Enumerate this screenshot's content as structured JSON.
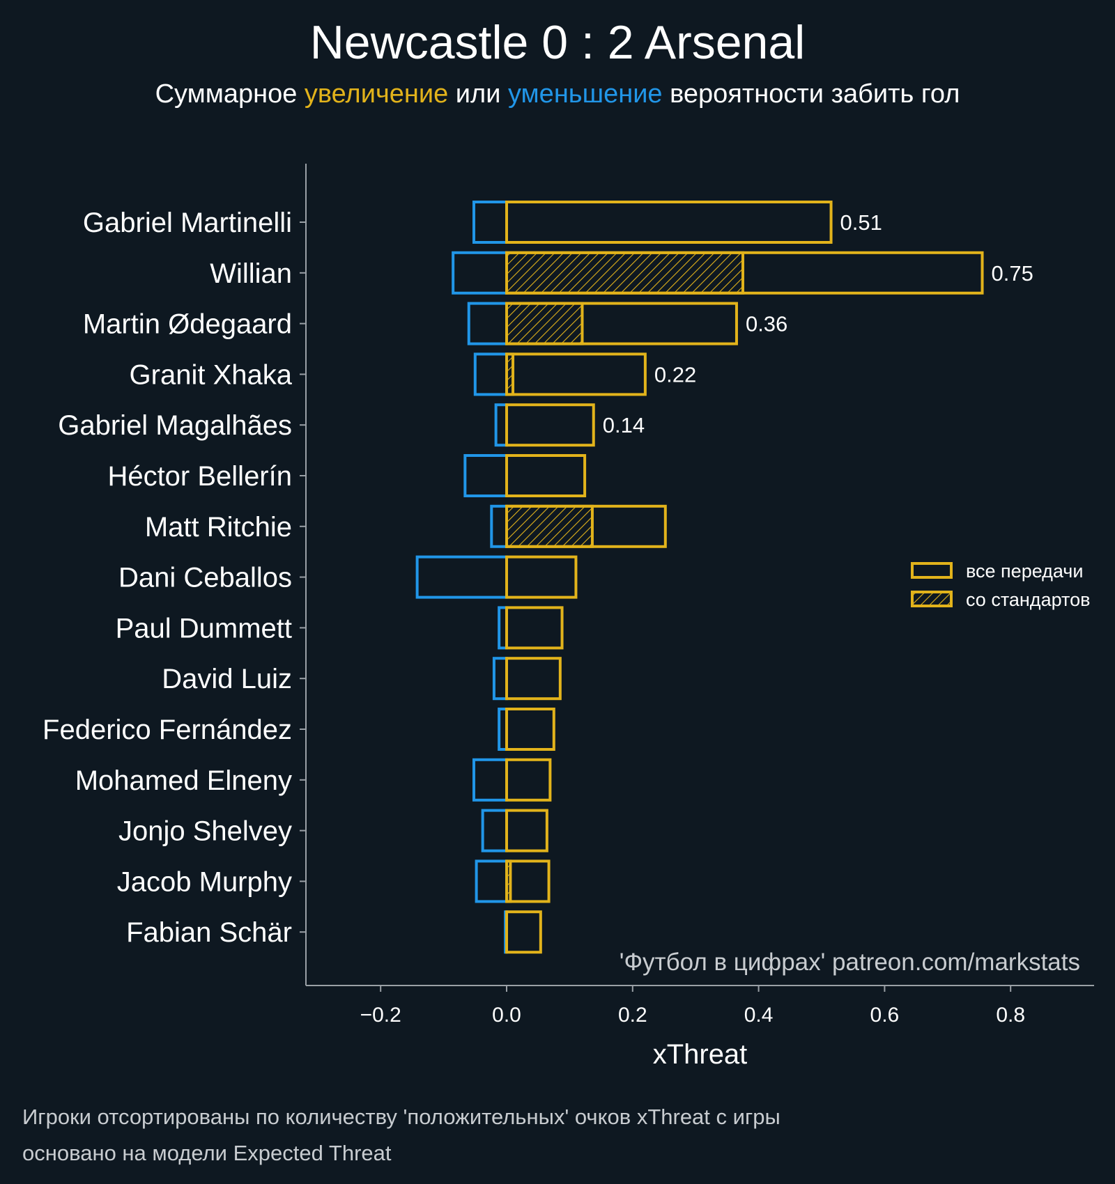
{
  "title": "Newcastle 0 : 2 Arsenal",
  "subtitle": {
    "prefix": "Суммарное ",
    "increase": "увеличение",
    "middle": " или ",
    "decrease": "уменьшение",
    "suffix": " вероятности забить гол"
  },
  "footnotes": [
    "Игроки отсортированы по количеству 'положительных' очков xThreat с игры",
    "основано на модели Expected Threat"
  ],
  "watermark": "'Футбол в цифрах' patreon.com/markstats",
  "colors": {
    "background": "#0e1821",
    "positive": "#e2b31b",
    "negative": "#2196e8",
    "axis": "#9aa0a6",
    "text": "#ffffff",
    "footnote": "#c8ccd0"
  },
  "chart_data": {
    "type": "bar",
    "orientation": "horizontal",
    "xlabel": "xThreat",
    "ylabel": "",
    "xlim": [
      -0.32,
      0.93
    ],
    "xticks": [
      -0.2,
      0.0,
      0.2,
      0.4,
      0.6,
      0.8
    ],
    "xtick_labels": [
      "−0.2",
      "0.0",
      "0.2",
      "0.4",
      "0.6",
      "0.8"
    ],
    "grid": false,
    "legend_position": "center-right",
    "categories": [
      "Gabriel Martinelli",
      "Willian",
      "Martin Ødegaard",
      "Granit Xhaka",
      "Gabriel Magalhães",
      "Héctor Bellerín",
      "Matt Ritchie",
      "Dani Ceballos",
      "Paul Dummett",
      "David Luiz",
      "Federico Fernández",
      "Mohamed Elneny",
      "Jonjo Shelvey",
      "Jacob Murphy",
      "Fabian Schär"
    ],
    "series": [
      {
        "name": "все передачи",
        "style": "outline",
        "values": [
          0.515,
          0.755,
          0.365,
          0.22,
          0.138,
          0.124,
          0.252,
          0.11,
          0.088,
          0.085,
          0.075,
          0.069,
          0.064,
          0.067,
          0.054
        ]
      },
      {
        "name": "со стандартов",
        "style": "hatched",
        "values": [
          0,
          0.375,
          0.12,
          0.01,
          0,
          0,
          0.136,
          0,
          0,
          0,
          0,
          0,
          0,
          0.006,
          0
        ]
      },
      {
        "style": "outline-negative",
        "values": [
          -0.052,
          -0.085,
          -0.06,
          -0.05,
          -0.017,
          -0.066,
          -0.024,
          -0.142,
          -0.012,
          -0.02,
          -0.012,
          -0.052,
          -0.038,
          -0.048,
          -0.002
        ]
      }
    ],
    "data_labels": [
      "0.51",
      "0.75",
      "0.36",
      "0.22",
      "0.14",
      "",
      "",
      "",
      "",
      "",
      "",
      "",
      "",
      "",
      ""
    ]
  }
}
